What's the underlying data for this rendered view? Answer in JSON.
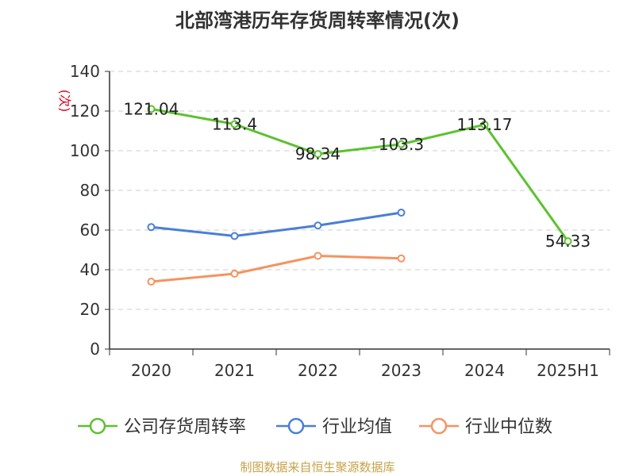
{
  "chart_data": {
    "type": "line",
    "title": "北部湾港历年存货周转率情况(次)",
    "ylabel": "(次)",
    "categories": [
      "2020",
      "2021",
      "2022",
      "2023",
      "2024",
      "2025H1"
    ],
    "ylim": [
      0,
      140
    ],
    "yticks": [
      0,
      20,
      40,
      60,
      80,
      100,
      120,
      140
    ],
    "grid": true,
    "legend_position": "bottom",
    "series": [
      {
        "name": "公司存货周转率",
        "color": "#5cc22f",
        "values": [
          121.04,
          113.4,
          98.34,
          103.3,
          113.17,
          54.33
        ],
        "labels": [
          "121.04",
          "113.4",
          "98.34",
          "103.3",
          "113.17",
          "54.33"
        ]
      },
      {
        "name": "行业均值",
        "color": "#4a7fd6",
        "values": [
          61.5,
          57,
          62.3,
          68.8,
          null,
          null
        ]
      },
      {
        "name": "行业中位数",
        "color": "#f59361",
        "values": [
          34,
          38,
          47,
          45.7,
          null,
          null
        ]
      }
    ]
  },
  "source": "制图数据来自恒生聚源数据库"
}
